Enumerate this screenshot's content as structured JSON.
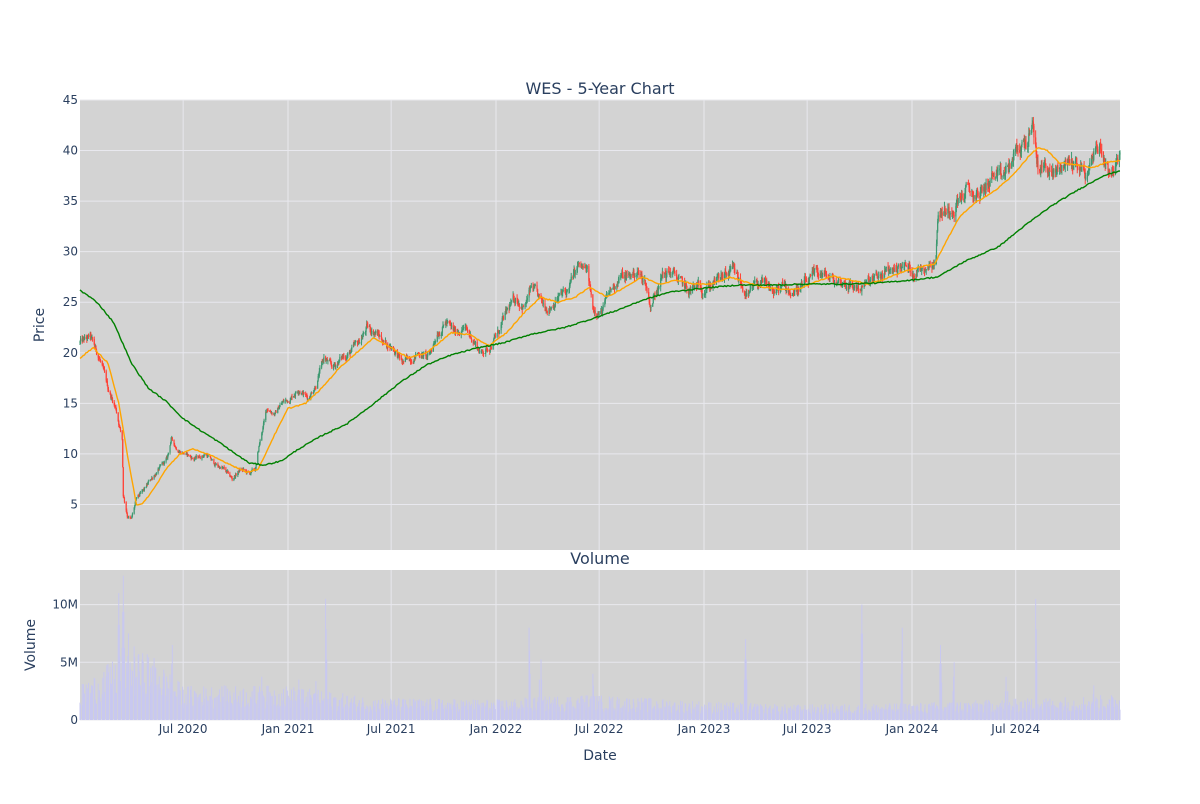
{
  "chart_data": {
    "type": "candlestick",
    "title": "WES - 5-Year Chart",
    "colors": {
      "plot_bg": "#d3d3d3",
      "grid": "#e8e8ee",
      "up": "#3d9970",
      "down": "#ff4136",
      "ma_short": "#ffa500",
      "ma_long": "#008000",
      "volume": "#c8c8f0",
      "text": "#2a3f5f"
    },
    "price_panel": {
      "ylabel": "Price",
      "ylim": [
        0.5,
        45
      ],
      "yticks": [
        5,
        10,
        15,
        20,
        25,
        30,
        35,
        40,
        45
      ],
      "candles_keypoints": [
        [
          "2020-01-02",
          21.0
        ],
        [
          "2020-01-20",
          21.5
        ],
        [
          "2020-02-05",
          19.5
        ],
        [
          "2020-02-20",
          16.5
        ],
        [
          "2020-03-05",
          14.5
        ],
        [
          "2020-03-16",
          11.5
        ],
        [
          "2020-03-18",
          6.0
        ],
        [
          "2020-03-25",
          4.0
        ],
        [
          "2020-04-01",
          3.5
        ],
        [
          "2020-04-10",
          5.5
        ],
        [
          "2020-04-25",
          6.5
        ],
        [
          "2020-05-05",
          7.5
        ],
        [
          "2020-05-20",
          8.5
        ],
        [
          "2020-06-03",
          9.5
        ],
        [
          "2020-06-10",
          11.5
        ],
        [
          "2020-06-20",
          10.5
        ],
        [
          "2020-07-05",
          10.0
        ],
        [
          "2020-07-20",
          9.5
        ],
        [
          "2020-08-10",
          10.0
        ],
        [
          "2020-08-25",
          9.0
        ],
        [
          "2020-09-10",
          8.5
        ],
        [
          "2020-09-25",
          7.5
        ],
        [
          "2020-10-10",
          8.5
        ],
        [
          "2020-10-25",
          8.0
        ],
        [
          "2020-11-05",
          8.5
        ],
        [
          "2020-11-12",
          11.0
        ],
        [
          "2020-11-25",
          14.5
        ],
        [
          "2020-12-10",
          14.0
        ],
        [
          "2020-12-20",
          15.0
        ],
        [
          "2021-01-05",
          15.5
        ],
        [
          "2021-01-20",
          16.5
        ],
        [
          "2021-02-05",
          15.5
        ],
        [
          "2021-02-20",
          17.0
        ],
        [
          "2021-03-05",
          19.5
        ],
        [
          "2021-03-20",
          18.5
        ],
        [
          "2021-04-05",
          19.5
        ],
        [
          "2021-04-20",
          20.0
        ],
        [
          "2021-05-05",
          21.0
        ],
        [
          "2021-05-20",
          22.5
        ],
        [
          "2021-06-05",
          22.0
        ],
        [
          "2021-06-20",
          21.0
        ],
        [
          "2021-07-05",
          20.5
        ],
        [
          "2021-07-20",
          19.0
        ],
        [
          "2021-08-05",
          19.5
        ],
        [
          "2021-08-20",
          20.0
        ],
        [
          "2021-09-05",
          19.5
        ],
        [
          "2021-09-20",
          22.0
        ],
        [
          "2021-10-05",
          23.0
        ],
        [
          "2021-10-20",
          22.0
        ],
        [
          "2021-11-05",
          22.5
        ],
        [
          "2021-11-20",
          21.5
        ],
        [
          "2021-12-05",
          20.0
        ],
        [
          "2021-12-20",
          20.5
        ],
        [
          "2022-01-05",
          22.0
        ],
        [
          "2022-01-20",
          24.0
        ],
        [
          "2022-02-05",
          25.5
        ],
        [
          "2022-02-20",
          24.5
        ],
        [
          "2022-03-05",
          26.5
        ],
        [
          "2022-03-20",
          25.0
        ],
        [
          "2022-04-05",
          24.5
        ],
        [
          "2022-04-20",
          25.5
        ],
        [
          "2022-05-05",
          26.0
        ],
        [
          "2022-05-25",
          28.5
        ],
        [
          "2022-06-10",
          28.0
        ],
        [
          "2022-06-20",
          24.5
        ],
        [
          "2022-07-05",
          24.0
        ],
        [
          "2022-07-20",
          26.0
        ],
        [
          "2022-08-05",
          27.5
        ],
        [
          "2022-08-20",
          27.5
        ],
        [
          "2022-09-05",
          28.0
        ],
        [
          "2022-09-20",
          27.0
        ],
        [
          "2022-09-30",
          24.5
        ],
        [
          "2022-10-15",
          27.5
        ],
        [
          "2022-11-05",
          28.0
        ],
        [
          "2022-11-20",
          27.0
        ],
        [
          "2022-12-05",
          26.0
        ],
        [
          "2022-12-20",
          26.5
        ],
        [
          "2023-01-05",
          26.5
        ],
        [
          "2023-01-20",
          27.0
        ],
        [
          "2023-02-05",
          27.5
        ],
        [
          "2023-02-20",
          28.0
        ],
        [
          "2023-03-05",
          27.0
        ],
        [
          "2023-03-20",
          25.5
        ],
        [
          "2023-04-05",
          27.0
        ],
        [
          "2023-04-20",
          26.5
        ],
        [
          "2023-05-05",
          26.0
        ],
        [
          "2023-05-20",
          26.5
        ],
        [
          "2023-06-05",
          26.0
        ],
        [
          "2023-06-20",
          26.5
        ],
        [
          "2023-07-05",
          27.0
        ],
        [
          "2023-07-20",
          28.0
        ],
        [
          "2023-08-05",
          27.5
        ],
        [
          "2023-08-20",
          27.0
        ],
        [
          "2023-09-05",
          27.0
        ],
        [
          "2023-09-20",
          26.5
        ],
        [
          "2023-10-05",
          26.5
        ],
        [
          "2023-10-20",
          27.0
        ],
        [
          "2023-11-05",
          27.5
        ],
        [
          "2023-11-20",
          28.0
        ],
        [
          "2023-12-05",
          28.5
        ],
        [
          "2023-12-20",
          28.5
        ],
        [
          "2024-01-05",
          28.0
        ],
        [
          "2024-01-20",
          28.5
        ],
        [
          "2024-02-05",
          29.0
        ],
        [
          "2024-02-12",
          29.5
        ],
        [
          "2024-02-16",
          34.0
        ],
        [
          "2024-03-05",
          34.0
        ],
        [
          "2024-03-20",
          35.0
        ],
        [
          "2024-04-05",
          36.0
        ],
        [
          "2024-04-20",
          35.5
        ],
        [
          "2024-05-05",
          36.0
        ],
        [
          "2024-05-20",
          37.5
        ],
        [
          "2024-06-05",
          37.0
        ],
        [
          "2024-06-20",
          38.5
        ],
        [
          "2024-07-05",
          40.0
        ],
        [
          "2024-07-20",
          41.0
        ],
        [
          "2024-08-01",
          42.0
        ],
        [
          "2024-08-10",
          38.0
        ],
        [
          "2024-08-25",
          38.5
        ],
        [
          "2024-09-05",
          37.5
        ],
        [
          "2024-09-20",
          38.5
        ],
        [
          "2024-10-05",
          39.0
        ],
        [
          "2024-10-20",
          38.5
        ],
        [
          "2024-11-05",
          37.5
        ],
        [
          "2024-11-15",
          40.0
        ],
        [
          "2024-11-25",
          40.5
        ],
        [
          "2024-12-05",
          39.0
        ],
        [
          "2024-12-15",
          38.0
        ],
        [
          "2024-12-31",
          39.0
        ]
      ],
      "ma_short_keypoints": [
        [
          "2020-01-02",
          19.5
        ],
        [
          "2020-01-25",
          20.5
        ],
        [
          "2020-02-20",
          19.0
        ],
        [
          "2020-03-10",
          15.0
        ],
        [
          "2020-03-25",
          10.0
        ],
        [
          "2020-04-10",
          5.0
        ],
        [
          "2020-04-20",
          5.0
        ],
        [
          "2020-05-10",
          6.5
        ],
        [
          "2020-06-01",
          8.5
        ],
        [
          "2020-06-25",
          10.0
        ],
        [
          "2020-07-20",
          10.5
        ],
        [
          "2020-08-20",
          9.8
        ],
        [
          "2020-09-20",
          9.0
        ],
        [
          "2020-10-20",
          8.2
        ],
        [
          "2020-11-10",
          8.5
        ],
        [
          "2020-12-05",
          11.5
        ],
        [
          "2021-01-01",
          14.5
        ],
        [
          "2021-02-01",
          15.0
        ],
        [
          "2021-03-01",
          16.5
        ],
        [
          "2021-04-01",
          18.5
        ],
        [
          "2021-05-01",
          20.0
        ],
        [
          "2021-06-01",
          21.5
        ],
        [
          "2021-07-01",
          20.5
        ],
        [
          "2021-08-01",
          19.5
        ],
        [
          "2021-09-01",
          20.0
        ],
        [
          "2021-10-15",
          22.0
        ],
        [
          "2021-11-15",
          21.8
        ],
        [
          "2021-12-20",
          20.7
        ],
        [
          "2022-01-20",
          22.0
        ],
        [
          "2022-02-20",
          24.0
        ],
        [
          "2022-03-20",
          25.5
        ],
        [
          "2022-04-20",
          25.0
        ],
        [
          "2022-05-20",
          25.5
        ],
        [
          "2022-06-15",
          26.5
        ],
        [
          "2022-07-15",
          25.5
        ],
        [
          "2022-08-15",
          26.5
        ],
        [
          "2022-09-15",
          27.5
        ],
        [
          "2022-10-15",
          26.8
        ],
        [
          "2022-11-15",
          27.2
        ],
        [
          "2022-12-15",
          26.8
        ],
        [
          "2023-01-15",
          26.8
        ],
        [
          "2023-02-15",
          27.5
        ],
        [
          "2023-03-15",
          27.0
        ],
        [
          "2023-04-15",
          26.5
        ],
        [
          "2023-05-15",
          26.3
        ],
        [
          "2023-06-15",
          26.3
        ],
        [
          "2023-07-15",
          27.0
        ],
        [
          "2023-08-15",
          27.6
        ],
        [
          "2023-09-15",
          27.2
        ],
        [
          "2023-10-15",
          26.8
        ],
        [
          "2023-11-15",
          27.3
        ],
        [
          "2023-12-15",
          28.0
        ],
        [
          "2024-01-15",
          28.5
        ],
        [
          "2024-02-10",
          28.8
        ],
        [
          "2024-03-01",
          31.0
        ],
        [
          "2024-03-25",
          33.5
        ],
        [
          "2024-04-25",
          35.0
        ],
        [
          "2024-05-25",
          36.0
        ],
        [
          "2024-06-25",
          37.5
        ],
        [
          "2024-07-25",
          39.5
        ],
        [
          "2024-08-10",
          40.3
        ],
        [
          "2024-08-25",
          40.0
        ],
        [
          "2024-09-15",
          38.8
        ],
        [
          "2024-10-15",
          38.6
        ],
        [
          "2024-11-15",
          38.3
        ],
        [
          "2024-12-05",
          38.8
        ],
        [
          "2024-12-31",
          39.0
        ]
      ],
      "ma_long_keypoints": [
        [
          "2020-01-02",
          26.2
        ],
        [
          "2020-02-01",
          25.0
        ],
        [
          "2020-03-01",
          23.0
        ],
        [
          "2020-04-01",
          19.0
        ],
        [
          "2020-05-01",
          16.5
        ],
        [
          "2020-06-01",
          15.2
        ],
        [
          "2020-07-01",
          13.5
        ],
        [
          "2020-08-01",
          12.3
        ],
        [
          "2020-09-01",
          11.2
        ],
        [
          "2020-10-01",
          10.0
        ],
        [
          "2020-10-25",
          9.1
        ],
        [
          "2020-11-20",
          8.9
        ],
        [
          "2020-12-20",
          9.3
        ],
        [
          "2021-01-20",
          10.5
        ],
        [
          "2021-03-01",
          11.8
        ],
        [
          "2021-04-15",
          13.0
        ],
        [
          "2021-06-01",
          15.0
        ],
        [
          "2021-07-15",
          17.0
        ],
        [
          "2021-09-01",
          18.8
        ],
        [
          "2021-10-15",
          19.8
        ],
        [
          "2021-12-01",
          20.5
        ],
        [
          "2022-01-15",
          21.0
        ],
        [
          "2022-03-01",
          21.8
        ],
        [
          "2022-05-01",
          22.5
        ],
        [
          "2022-06-15",
          23.3
        ],
        [
          "2022-08-01",
          24.2
        ],
        [
          "2022-09-15",
          25.2
        ],
        [
          "2022-11-01",
          26.0
        ],
        [
          "2023-01-01",
          26.4
        ],
        [
          "2023-03-01",
          26.7
        ],
        [
          "2023-05-01",
          26.7
        ],
        [
          "2023-07-01",
          26.8
        ],
        [
          "2023-09-01",
          26.8
        ],
        [
          "2023-11-01",
          26.9
        ],
        [
          "2024-01-01",
          27.2
        ],
        [
          "2024-02-15",
          27.5
        ],
        [
          "2024-04-01",
          29.0
        ],
        [
          "2024-06-01",
          30.5
        ],
        [
          "2024-07-15",
          32.5
        ],
        [
          "2024-09-01",
          34.5
        ],
        [
          "2024-10-15",
          36.0
        ],
        [
          "2024-12-01",
          37.5
        ],
        [
          "2024-12-31",
          38.0
        ]
      ]
    },
    "volume_panel": {
      "title": "Volume",
      "ylabel": "Volume",
      "ylim": [
        0,
        13000000
      ],
      "yticks": [
        0,
        5000000,
        10000000
      ],
      "ytick_labels": [
        "0",
        "5M",
        "10M"
      ],
      "spikes": [
        [
          "2020-03-10",
          11000000
        ],
        [
          "2020-03-18",
          12500000
        ],
        [
          "2020-03-28",
          10000000
        ],
        [
          "2020-04-05",
          8500000
        ],
        [
          "2020-04-12",
          7500000
        ],
        [
          "2020-05-01",
          5000000
        ],
        [
          "2020-06-12",
          6500000
        ],
        [
          "2020-11-15",
          5000000
        ],
        [
          "2021-01-20",
          3500000
        ],
        [
          "2021-02-20",
          4500000
        ],
        [
          "2021-03-08",
          10500000
        ],
        [
          "2022-02-28",
          8000000
        ],
        [
          "2022-03-20",
          7000000
        ],
        [
          "2022-06-20",
          4000000
        ],
        [
          "2023-03-15",
          7000000
        ],
        [
          "2023-10-05",
          10000000
        ],
        [
          "2023-12-15",
          8000000
        ],
        [
          "2024-02-20",
          6500000
        ],
        [
          "2024-03-15",
          5000000
        ],
        [
          "2024-06-15",
          5000000
        ],
        [
          "2024-08-05",
          10500000
        ],
        [
          "2024-11-15",
          3000000
        ]
      ]
    },
    "x_axis": {
      "label": "Date",
      "range": [
        "2020-01-02",
        "2024-12-31"
      ],
      "ticks": [
        {
          "date": "2020-07-01",
          "label": "Jul 2020"
        },
        {
          "date": "2021-01-01",
          "label": "Jan 2021"
        },
        {
          "date": "2021-07-01",
          "label": "Jul 2021"
        },
        {
          "date": "2022-01-01",
          "label": "Jan 2022"
        },
        {
          "date": "2022-07-01",
          "label": "Jul 2022"
        },
        {
          "date": "2023-01-01",
          "label": "Jan 2023"
        },
        {
          "date": "2023-07-01",
          "label": "Jul 2023"
        },
        {
          "date": "2024-01-01",
          "label": "Jan 2024"
        },
        {
          "date": "2024-07-01",
          "label": "Jul 2024"
        }
      ]
    }
  }
}
